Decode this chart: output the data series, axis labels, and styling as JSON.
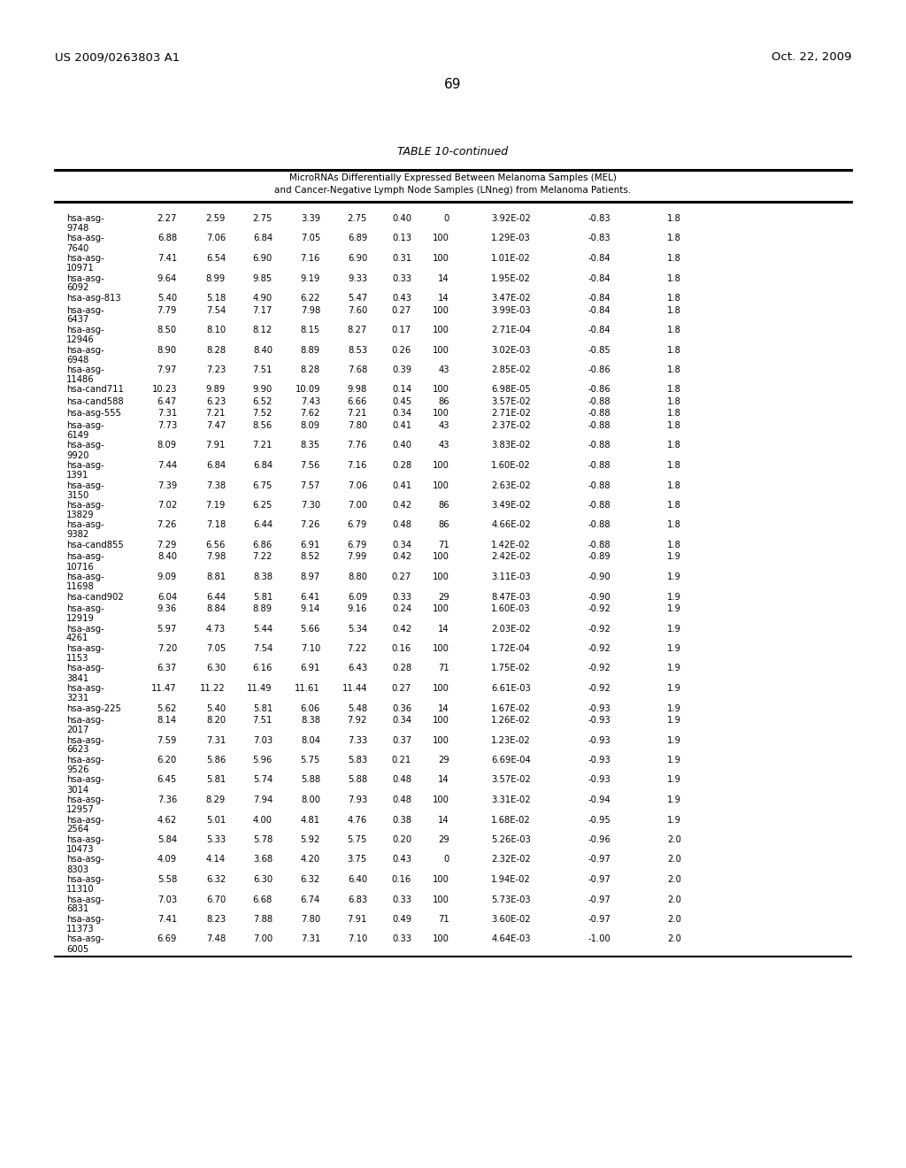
{
  "header_left": "US 2009/0263803 A1",
  "header_right": "Oct. 22, 2009",
  "page_number": "69",
  "table_title": "TABLE 10-continued",
  "table_subtitle1": "MicroRNAs Differentially Expressed Between Melanoma Samples (MEL)",
  "table_subtitle2": "and Cancer-Negative Lymph Node Samples (LNneg) from Melanoma Patients.",
  "rows": [
    [
      "hsa-asg-\n9748",
      "2.27",
      "2.59",
      "2.75",
      "3.39",
      "2.75",
      "0.40",
      "0",
      "3.92E-02",
      "-0.83",
      "1.8"
    ],
    [
      "hsa-asg-\n7640",
      "6.88",
      "7.06",
      "6.84",
      "7.05",
      "6.89",
      "0.13",
      "100",
      "1.29E-03",
      "-0.83",
      "1.8"
    ],
    [
      "hsa-asg-\n10971",
      "7.41",
      "6.54",
      "6.90",
      "7.16",
      "6.90",
      "0.31",
      "100",
      "1.01E-02",
      "-0.84",
      "1.8"
    ],
    [
      "hsa-asg-\n6092",
      "9.64",
      "8.99",
      "9.85",
      "9.19",
      "9.33",
      "0.33",
      "14",
      "1.95E-02",
      "-0.84",
      "1.8"
    ],
    [
      "hsa-asg-813",
      "5.40",
      "5.18",
      "4.90",
      "6.22",
      "5.47",
      "0.43",
      "14",
      "3.47E-02",
      "-0.84",
      "1.8"
    ],
    [
      "hsa-asg-\n6437",
      "7.79",
      "7.54",
      "7.17",
      "7.98",
      "7.60",
      "0.27",
      "100",
      "3.99E-03",
      "-0.84",
      "1.8"
    ],
    [
      "hsa-asg-\n12946",
      "8.50",
      "8.10",
      "8.12",
      "8.15",
      "8.27",
      "0.17",
      "100",
      "2.71E-04",
      "-0.84",
      "1.8"
    ],
    [
      "hsa-asg-\n6948",
      "8.90",
      "8.28",
      "8.40",
      "8.89",
      "8.53",
      "0.26",
      "100",
      "3.02E-03",
      "-0.85",
      "1.8"
    ],
    [
      "hsa-asg-\n11486",
      "7.97",
      "7.23",
      "7.51",
      "8.28",
      "7.68",
      "0.39",
      "43",
      "2.85E-02",
      "-0.86",
      "1.8"
    ],
    [
      "hsa-cand711",
      "10.23",
      "9.89",
      "9.90",
      "10.09",
      "9.98",
      "0.14",
      "100",
      "6.98E-05",
      "-0.86",
      "1.8"
    ],
    [
      "hsa-cand588",
      "6.47",
      "6.23",
      "6.52",
      "7.43",
      "6.66",
      "0.45",
      "86",
      "3.57E-02",
      "-0.88",
      "1.8"
    ],
    [
      "hsa-asg-555",
      "7.31",
      "7.21",
      "7.52",
      "7.62",
      "7.21",
      "0.34",
      "100",
      "2.71E-02",
      "-0.88",
      "1.8"
    ],
    [
      "hsa-asg-\n6149",
      "7.73",
      "7.47",
      "8.56",
      "8.09",
      "7.80",
      "0.41",
      "43",
      "2.37E-02",
      "-0.88",
      "1.8"
    ],
    [
      "hsa-asg-\n9920",
      "8.09",
      "7.91",
      "7.21",
      "8.35",
      "7.76",
      "0.40",
      "43",
      "3.83E-02",
      "-0.88",
      "1.8"
    ],
    [
      "hsa-asg-\n1391",
      "7.44",
      "6.84",
      "6.84",
      "7.56",
      "7.16",
      "0.28",
      "100",
      "1.60E-02",
      "-0.88",
      "1.8"
    ],
    [
      "hsa-asg-\n3150",
      "7.39",
      "7.38",
      "6.75",
      "7.57",
      "7.06",
      "0.41",
      "100",
      "2.63E-02",
      "-0.88",
      "1.8"
    ],
    [
      "hsa-asg-\n13829",
      "7.02",
      "7.19",
      "6.25",
      "7.30",
      "7.00",
      "0.42",
      "86",
      "3.49E-02",
      "-0.88",
      "1.8"
    ],
    [
      "hsa-asg-\n9382",
      "7.26",
      "7.18",
      "6.44",
      "7.26",
      "6.79",
      "0.48",
      "86",
      "4.66E-02",
      "-0.88",
      "1.8"
    ],
    [
      "hsa-cand855",
      "7.29",
      "6.56",
      "6.86",
      "6.91",
      "6.79",
      "0.34",
      "71",
      "1.42E-02",
      "-0.88",
      "1.8"
    ],
    [
      "hsa-asg-\n10716",
      "8.40",
      "7.98",
      "7.22",
      "8.52",
      "7.99",
      "0.42",
      "100",
      "2.42E-02",
      "-0.89",
      "1.9"
    ],
    [
      "hsa-asg-\n11698",
      "9.09",
      "8.81",
      "8.38",
      "8.97",
      "8.80",
      "0.27",
      "100",
      "3.11E-03",
      "-0.90",
      "1.9"
    ],
    [
      "hsa-cand902",
      "6.04",
      "6.44",
      "5.81",
      "6.41",
      "6.09",
      "0.33",
      "29",
      "8.47E-03",
      "-0.90",
      "1.9"
    ],
    [
      "hsa-asg-\n12919",
      "9.36",
      "8.84",
      "8.89",
      "9.14",
      "9.16",
      "0.24",
      "100",
      "1.60E-03",
      "-0.92",
      "1.9"
    ],
    [
      "hsa-asg-\n4261",
      "5.97",
      "4.73",
      "5.44",
      "5.66",
      "5.34",
      "0.42",
      "14",
      "2.03E-02",
      "-0.92",
      "1.9"
    ],
    [
      "hsa-asg-\n1153",
      "7.20",
      "7.05",
      "7.54",
      "7.10",
      "7.22",
      "0.16",
      "100",
      "1.72E-04",
      "-0.92",
      "1.9"
    ],
    [
      "hsa-asg-\n3841",
      "6.37",
      "6.30",
      "6.16",
      "6.91",
      "6.43",
      "0.28",
      "71",
      "1.75E-02",
      "-0.92",
      "1.9"
    ],
    [
      "hsa-asg-\n3231",
      "11.47",
      "11.22",
      "11.49",
      "11.61",
      "11.44",
      "0.27",
      "100",
      "6.61E-03",
      "-0.92",
      "1.9"
    ],
    [
      "hsa-asg-225",
      "5.62",
      "5.40",
      "5.81",
      "6.06",
      "5.48",
      "0.36",
      "14",
      "1.67E-02",
      "-0.93",
      "1.9"
    ],
    [
      "hsa-asg-\n2017",
      "8.14",
      "8.20",
      "7.51",
      "8.38",
      "7.92",
      "0.34",
      "100",
      "1.26E-02",
      "-0.93",
      "1.9"
    ],
    [
      "hsa-asg-\n6623",
      "7.59",
      "7.31",
      "7.03",
      "8.04",
      "7.33",
      "0.37",
      "100",
      "1.23E-02",
      "-0.93",
      "1.9"
    ],
    [
      "hsa-asg-\n9526",
      "6.20",
      "5.86",
      "5.96",
      "5.75",
      "5.83",
      "0.21",
      "29",
      "6.69E-04",
      "-0.93",
      "1.9"
    ],
    [
      "hsa-asg-\n3014",
      "6.45",
      "5.81",
      "5.74",
      "5.88",
      "5.88",
      "0.48",
      "14",
      "3.57E-02",
      "-0.93",
      "1.9"
    ],
    [
      "hsa-asg-\n12957",
      "7.36",
      "8.29",
      "7.94",
      "8.00",
      "7.93",
      "0.48",
      "100",
      "3.31E-02",
      "-0.94",
      "1.9"
    ],
    [
      "hsa-asg-\n2564",
      "4.62",
      "5.01",
      "4.00",
      "4.81",
      "4.76",
      "0.38",
      "14",
      "1.68E-02",
      "-0.95",
      "1.9"
    ],
    [
      "hsa-asg-\n10473",
      "5.84",
      "5.33",
      "5.78",
      "5.92",
      "5.75",
      "0.20",
      "29",
      "5.26E-03",
      "-0.96",
      "2.0"
    ],
    [
      "hsa-asg-\n8303",
      "4.09",
      "4.14",
      "3.68",
      "4.20",
      "3.75",
      "0.43",
      "0",
      "2.32E-02",
      "-0.97",
      "2.0"
    ],
    [
      "hsa-asg-\n11310",
      "5.58",
      "6.32",
      "6.30",
      "6.32",
      "6.40",
      "0.16",
      "100",
      "1.94E-02",
      "-0.97",
      "2.0"
    ],
    [
      "hsa-asg-\n6831",
      "7.03",
      "6.70",
      "6.68",
      "6.74",
      "6.83",
      "0.33",
      "100",
      "5.73E-03",
      "-0.97",
      "2.0"
    ],
    [
      "hsa-asg-\n11373",
      "7.41",
      "8.23",
      "7.88",
      "7.80",
      "7.91",
      "0.49",
      "71",
      "3.60E-02",
      "-0.97",
      "2.0"
    ],
    [
      "hsa-asg-\n6005",
      "6.69",
      "7.48",
      "7.00",
      "7.31",
      "7.10",
      "0.33",
      "100",
      "4.64E-03",
      "-1.00",
      "2.0"
    ]
  ]
}
